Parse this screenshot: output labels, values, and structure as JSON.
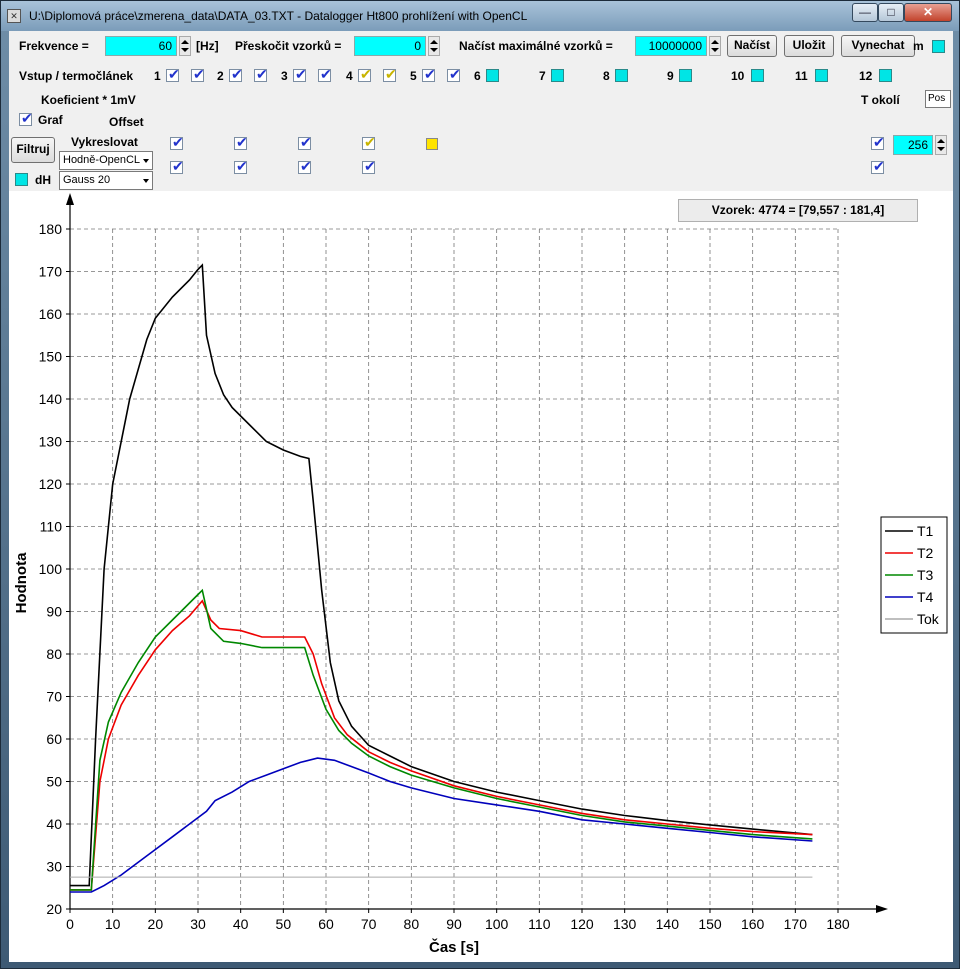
{
  "window": {
    "title": "U:\\Diplomová práce\\zmerena_data\\DATA_03.TXT - Datalogger Ht800 prohlížení with OpenCL",
    "minimize": "—",
    "maximize": "□",
    "close": "✕"
  },
  "toolbar": {
    "freq_label": "Frekvence =",
    "freq_value": "60",
    "freq_unit": "[Hz]",
    "skip_label": "Přeskočit vzorků =",
    "skip_value": "0",
    "max_label": "Načíst maximálné vzorků =",
    "max_value": "10000000",
    "load_button": "Načíst",
    "save_button": "Uložit",
    "skip_button": "Vynechat",
    "m_label": "m"
  },
  "inputs_row": {
    "label": "Vstup / termočlánek",
    "channels": [
      {
        "num": "1",
        "a": "on",
        "b": "on"
      },
      {
        "num": "2",
        "a": "on",
        "b": "on"
      },
      {
        "num": "3",
        "a": "on",
        "b": "on"
      },
      {
        "num": "4",
        "a": "yellow",
        "b": "yellow"
      },
      {
        "num": "5",
        "a": "on",
        "b": "on"
      },
      {
        "num": "6",
        "a": "off"
      },
      {
        "num": "7",
        "a": "off"
      },
      {
        "num": "8",
        "a": "off"
      },
      {
        "num": "9",
        "a": "off"
      },
      {
        "num": "10",
        "a": "off"
      },
      {
        "num": "11",
        "a": "off"
      },
      {
        "num": "12",
        "a": "off"
      }
    ]
  },
  "coef": {
    "label": "Koeficient * 1mV",
    "offset": "Offset",
    "graf": "Graf",
    "t_okoli": "T okolí",
    "pos": "Pos"
  },
  "controls": {
    "filter_button": "Filtruj",
    "draw_label": "Vykreslovat",
    "render_select": "Hodně-OpenCL",
    "dh_label": "dH",
    "gauss_select": "Gauss 20",
    "count_value": "256"
  },
  "sample_readout": "Vzorek: 4774 = [79,557 : 181,4]",
  "chart_data": {
    "type": "line",
    "xlabel": "Čas [s]",
    "ylabel": "Hodnota",
    "xlim": [
      0,
      180
    ],
    "ylim": [
      20,
      180
    ],
    "xticks": [
      0,
      10,
      20,
      30,
      40,
      50,
      60,
      70,
      80,
      90,
      100,
      110,
      120,
      130,
      140,
      150,
      160,
      170,
      180
    ],
    "yticks": [
      20,
      30,
      40,
      50,
      60,
      70,
      80,
      90,
      100,
      110,
      120,
      130,
      140,
      150,
      160,
      170,
      180
    ],
    "grid": true,
    "legend_position": "right",
    "series": [
      {
        "name": "T1",
        "color": "#000000",
        "points": [
          [
            0,
            25.5
          ],
          [
            4.5,
            25.5
          ],
          [
            6,
            60
          ],
          [
            8,
            100
          ],
          [
            10,
            120
          ],
          [
            14,
            140
          ],
          [
            18,
            154
          ],
          [
            20,
            159
          ],
          [
            24,
            164
          ],
          [
            28,
            168
          ],
          [
            30,
            170.5
          ],
          [
            31,
            171.5
          ],
          [
            32,
            155
          ],
          [
            34,
            146
          ],
          [
            36,
            141
          ],
          [
            38,
            138
          ],
          [
            42,
            134
          ],
          [
            46,
            130
          ],
          [
            50,
            128
          ],
          [
            54,
            126.5
          ],
          [
            56,
            126
          ],
          [
            57,
            116
          ],
          [
            59,
            95
          ],
          [
            61,
            78
          ],
          [
            63,
            69
          ],
          [
            66,
            63
          ],
          [
            70,
            58.5
          ],
          [
            75,
            56
          ],
          [
            80,
            53.5
          ],
          [
            90,
            50
          ],
          [
            100,
            47.5
          ],
          [
            110,
            45.5
          ],
          [
            120,
            43.5
          ],
          [
            130,
            42
          ],
          [
            140,
            40.8
          ],
          [
            150,
            39.8
          ],
          [
            160,
            38.8
          ],
          [
            174,
            37.5
          ]
        ]
      },
      {
        "name": "T2",
        "color": "#ee0000",
        "points": [
          [
            0,
            24.5
          ],
          [
            5,
            24.5
          ],
          [
            7,
            50
          ],
          [
            9,
            60
          ],
          [
            12,
            68
          ],
          [
            16,
            75
          ],
          [
            20,
            81
          ],
          [
            24,
            85.5
          ],
          [
            28,
            89
          ],
          [
            31,
            92.5
          ],
          [
            33,
            88
          ],
          [
            35,
            86
          ],
          [
            40,
            85.5
          ],
          [
            45,
            84
          ],
          [
            50,
            84
          ],
          [
            55,
            84
          ],
          [
            57,
            80
          ],
          [
            59,
            73
          ],
          [
            62,
            65
          ],
          [
            65,
            61
          ],
          [
            70,
            57
          ],
          [
            75,
            54.5
          ],
          [
            80,
            52.5
          ],
          [
            90,
            49
          ],
          [
            100,
            46.5
          ],
          [
            110,
            44.5
          ],
          [
            120,
            42.5
          ],
          [
            130,
            41
          ],
          [
            140,
            40
          ],
          [
            150,
            39
          ],
          [
            160,
            38.2
          ],
          [
            174,
            37.5
          ]
        ]
      },
      {
        "name": "T3",
        "color": "#008800",
        "points": [
          [
            0,
            24.5
          ],
          [
            5,
            24.5
          ],
          [
            7,
            55
          ],
          [
            9,
            64
          ],
          [
            12,
            71
          ],
          [
            16,
            78
          ],
          [
            20,
            84
          ],
          [
            24,
            88
          ],
          [
            28,
            92
          ],
          [
            30,
            94
          ],
          [
            31,
            95
          ],
          [
            33,
            86
          ],
          [
            36,
            83
          ],
          [
            40,
            82.5
          ],
          [
            45,
            81.5
          ],
          [
            50,
            81.5
          ],
          [
            55,
            81.5
          ],
          [
            57,
            75
          ],
          [
            60,
            67
          ],
          [
            63,
            62
          ],
          [
            66,
            59
          ],
          [
            70,
            56
          ],
          [
            75,
            53.5
          ],
          [
            80,
            51.5
          ],
          [
            90,
            48.5
          ],
          [
            100,
            46
          ],
          [
            110,
            44
          ],
          [
            120,
            42
          ],
          [
            130,
            40.5
          ],
          [
            140,
            39.5
          ],
          [
            150,
            38.5
          ],
          [
            160,
            37.5
          ],
          [
            174,
            36.5
          ]
        ]
      },
      {
        "name": "T4",
        "color": "#0000bb",
        "points": [
          [
            0,
            24
          ],
          [
            5,
            24
          ],
          [
            8,
            25.5
          ],
          [
            12,
            28
          ],
          [
            18,
            32.5
          ],
          [
            24,
            37
          ],
          [
            28,
            40
          ],
          [
            32,
            43
          ],
          [
            34,
            45.5
          ],
          [
            38,
            47.5
          ],
          [
            42,
            50
          ],
          [
            46,
            51.5
          ],
          [
            50,
            53
          ],
          [
            54,
            54.5
          ],
          [
            58,
            55.5
          ],
          [
            62,
            55
          ],
          [
            66,
            53.5
          ],
          [
            70,
            52
          ],
          [
            75,
            50
          ],
          [
            80,
            48.5
          ],
          [
            90,
            46
          ],
          [
            100,
            44.5
          ],
          [
            110,
            43
          ],
          [
            120,
            41
          ],
          [
            130,
            40
          ],
          [
            140,
            39
          ],
          [
            150,
            38
          ],
          [
            160,
            37
          ],
          [
            174,
            36
          ]
        ]
      },
      {
        "name": "Tok",
        "color": "#aaaaaa",
        "points": [
          [
            0,
            27.5
          ],
          [
            174,
            27.5
          ]
        ]
      }
    ]
  }
}
